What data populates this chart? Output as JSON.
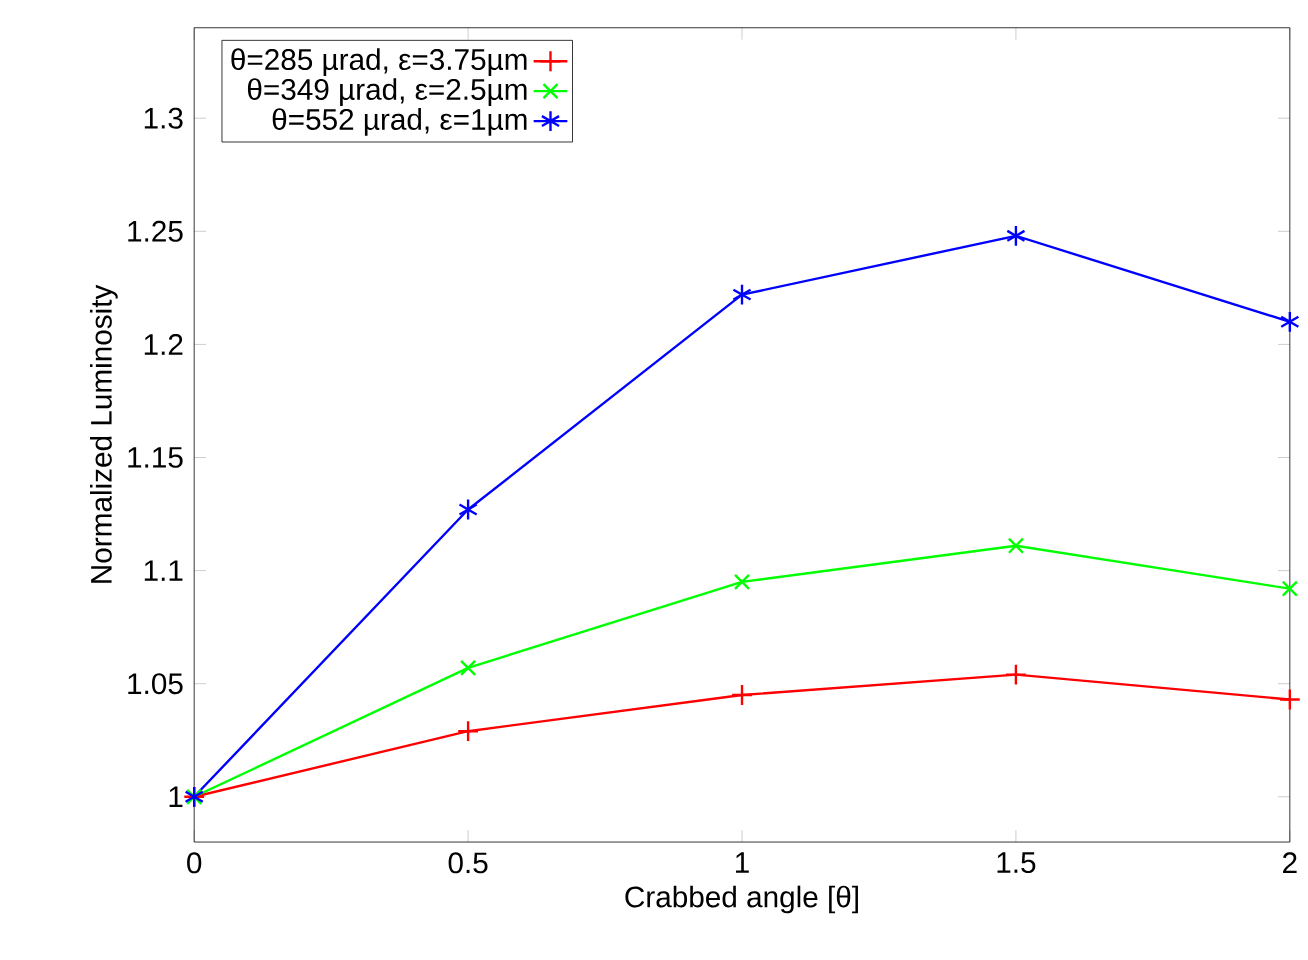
{
  "chart_data": {
    "type": "line",
    "xlabel": "Crabbed angle [θ]",
    "ylabel": "Normalized Luminosity",
    "x": [
      0,
      0.5,
      1,
      1.5,
      2
    ],
    "series": [
      {
        "name": "θ=285 µrad, ε=3.75µm",
        "color": "#ff0000",
        "marker": "plus",
        "values": [
          1,
          1.029,
          1.045,
          1.054,
          1.043
        ]
      },
      {
        "name": "θ=349 µrad, ε=2.5µm",
        "color": "#00ff00",
        "marker": "x",
        "values": [
          1,
          1.057,
          1.095,
          1.111,
          1.092
        ]
      },
      {
        "name": "θ=552 µrad, ε=1µm",
        "color": "#0000ff",
        "marker": "cross",
        "values": [
          1,
          1.127,
          1.222,
          1.248,
          1.21
        ]
      }
    ],
    "xlim": [
      0,
      2
    ],
    "ylim": [
      0.98,
      1.34
    ],
    "xticks": [
      0,
      0.5,
      1,
      1.5,
      2
    ],
    "yticks": [
      1,
      1.05,
      1.1,
      1.15,
      1.2,
      1.25,
      1.3
    ],
    "legend": "top left",
    "line_style": "solid"
  }
}
